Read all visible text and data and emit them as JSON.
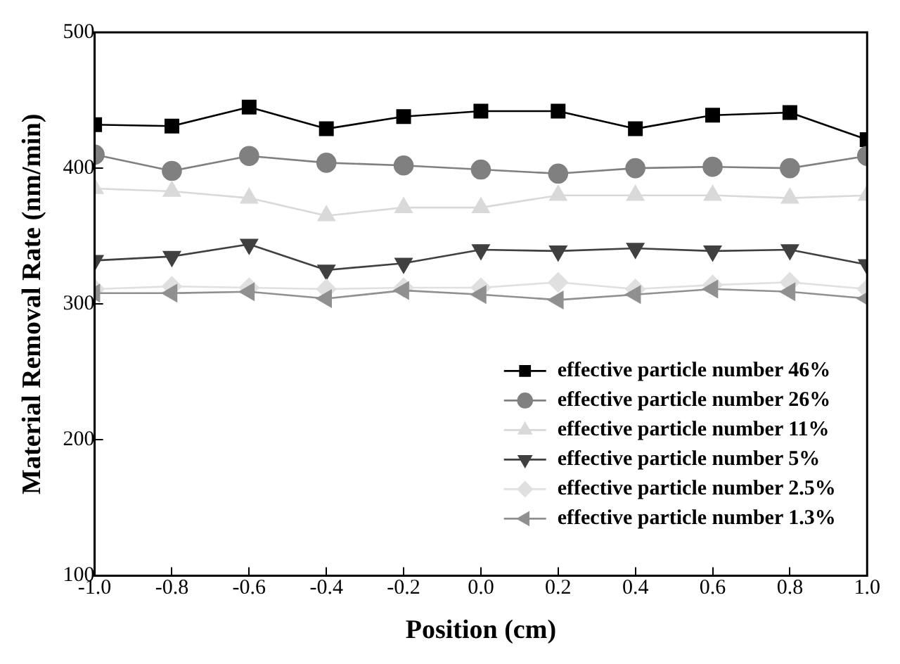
{
  "chart_data": {
    "type": "line",
    "xlabel": "Position (cm)",
    "ylabel": "Material Removal Rate (nm/min)",
    "x": [
      -1.0,
      -0.8,
      -0.6,
      -0.4,
      -0.2,
      0.0,
      0.2,
      0.4,
      0.6,
      0.8,
      1.0
    ],
    "series": [
      {
        "name": "effective particle number 46%",
        "color": "#000000",
        "marker": "square",
        "values": [
          432,
          431,
          445,
          429,
          438,
          442,
          442,
          429,
          439,
          441,
          421
        ]
      },
      {
        "name": "effective particle number 26%",
        "color": "#808080",
        "marker": "circle",
        "values": [
          410,
          398,
          409,
          404,
          402,
          399,
          396,
          400,
          401,
          400,
          409
        ]
      },
      {
        "name": "effective particle number 11%",
        "color": "#d9d9d9",
        "marker": "triangle",
        "values": [
          385,
          383,
          378,
          365,
          371,
          371,
          380,
          380,
          380,
          378,
          380
        ]
      },
      {
        "name": "effective particle number 5%",
        "color": "#404040",
        "marker": "triangle-down",
        "values": [
          332,
          335,
          344,
          325,
          330,
          340,
          339,
          341,
          339,
          340,
          329
        ]
      },
      {
        "name": "effective particle number 2.5%",
        "color": "#e0e0e0",
        "marker": "diamond",
        "values": [
          311,
          313,
          312,
          311,
          312,
          312,
          316,
          311,
          314,
          316,
          311
        ]
      },
      {
        "name": "effective particle number 1.3%",
        "color": "#909090",
        "marker": "triangle-left",
        "values": [
          308,
          308,
          309,
          304,
          310,
          307,
          303,
          307,
          311,
          309,
          304
        ]
      }
    ],
    "xlim": [
      -1.0,
      1.0
    ],
    "xticks": [
      {
        "value": -1,
        "label": "-1.0"
      },
      {
        "value": -0.8,
        "label": "-0.8"
      },
      {
        "value": -0.6,
        "label": "-0.6"
      },
      {
        "value": -0.4,
        "label": "-0.4"
      },
      {
        "value": -0.2,
        "label": "-0.2"
      },
      {
        "value": 0,
        "label": "0.0"
      },
      {
        "value": 0.2,
        "label": "0.2"
      },
      {
        "value": 0.4,
        "label": "0.4"
      },
      {
        "value": 0.6,
        "label": "0.6"
      },
      {
        "value": 0.8,
        "label": "0.8"
      },
      {
        "value": 1,
        "label": "1.0"
      }
    ],
    "ylim": [
      100,
      500
    ],
    "yticks": [
      100,
      200,
      300,
      400,
      500
    ],
    "grid": false,
    "legend": "bottom right",
    "line_style": "solid"
  }
}
